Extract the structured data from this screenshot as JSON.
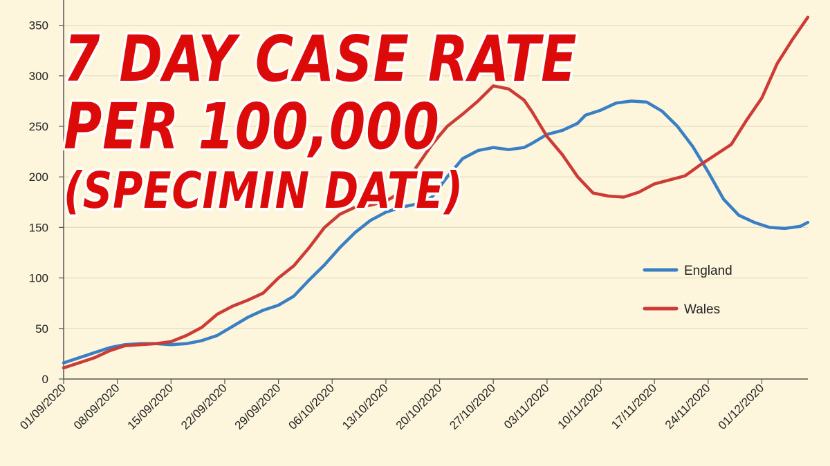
{
  "headline": {
    "line1": "7 DAY CASE RATE",
    "line2": "PER 100,000",
    "line3": "(SPECIMIN DATE)"
  },
  "colors": {
    "background": "#fdf6dc",
    "england": "#3a7fc4",
    "wales": "#cc3b35",
    "headline": "#dd0a0a",
    "grid": "#e4dcc0"
  },
  "chart_data": {
    "type": "line",
    "title": "7 DAY CASE RATE PER 100,000 (SPECIMIN DATE)",
    "xlabel": "",
    "ylabel": "",
    "ylim": [
      0,
      375
    ],
    "yticks": [
      0,
      50,
      100,
      150,
      200,
      250,
      300,
      350
    ],
    "xticks": [
      "01/09/2020",
      "08/09/2020",
      "15/09/2020",
      "22/09/2020",
      "29/09/2020",
      "06/10/2020",
      "13/10/2020",
      "20/10/2020",
      "27/10/2020",
      "03/11/2020",
      "10/11/2020",
      "17/11/2020",
      "24/11/2020",
      "01/12/2020"
    ],
    "x_start": "01/09/2020",
    "x_end": "07/12/2020",
    "grid": true,
    "legend_position": "right",
    "series": [
      {
        "name": "England",
        "color": "#3a7fc4",
        "x": [
          "01/09/2020",
          "03/09/2020",
          "05/09/2020",
          "07/09/2020",
          "09/09/2020",
          "11/09/2020",
          "13/09/2020",
          "15/09/2020",
          "17/09/2020",
          "19/09/2020",
          "21/09/2020",
          "23/09/2020",
          "25/09/2020",
          "27/09/2020",
          "29/09/2020",
          "01/10/2020",
          "03/10/2020",
          "05/10/2020",
          "07/10/2020",
          "09/10/2020",
          "11/10/2020",
          "13/10/2020",
          "15/10/2020",
          "17/10/2020",
          "19/10/2020",
          "21/10/2020",
          "23/10/2020",
          "25/10/2020",
          "27/10/2020",
          "29/10/2020",
          "31/10/2020",
          "01/11/2020",
          "03/11/2020",
          "05/11/2020",
          "07/11/2020",
          "08/11/2020",
          "10/11/2020",
          "12/11/2020",
          "14/11/2020",
          "16/11/2020",
          "18/11/2020",
          "20/11/2020",
          "22/11/2020",
          "24/11/2020",
          "26/11/2020",
          "28/11/2020",
          "30/11/2020",
          "02/12/2020",
          "04/12/2020",
          "06/12/2020",
          "07/12/2020"
        ],
        "values": [
          16,
          21,
          26,
          31,
          34,
          35,
          35,
          34,
          35,
          38,
          43,
          52,
          61,
          68,
          73,
          82,
          98,
          113,
          130,
          145,
          157,
          165,
          170,
          173,
          180,
          200,
          218,
          226,
          229,
          227,
          229,
          233,
          242,
          246,
          253,
          261,
          266,
          273,
          275,
          274,
          265,
          250,
          230,
          205,
          178,
          162,
          155,
          150,
          149,
          151,
          155
        ]
      },
      {
        "name": "Wales",
        "color": "#cc3b35",
        "x": [
          "01/09/2020",
          "03/09/2020",
          "05/09/2020",
          "07/09/2020",
          "09/09/2020",
          "11/09/2020",
          "13/09/2020",
          "15/09/2020",
          "17/09/2020",
          "19/09/2020",
          "21/09/2020",
          "23/09/2020",
          "25/09/2020",
          "27/09/2020",
          "29/09/2020",
          "01/10/2020",
          "03/10/2020",
          "05/10/2020",
          "07/10/2020",
          "09/10/2020",
          "11/10/2020",
          "13/10/2020",
          "15/10/2020",
          "17/10/2020",
          "19/10/2020",
          "21/10/2020",
          "23/10/2020",
          "25/10/2020",
          "27/10/2020",
          "29/10/2020",
          "31/10/2020",
          "01/11/2020",
          "03/11/2020",
          "05/11/2020",
          "07/11/2020",
          "09/11/2020",
          "11/11/2020",
          "13/11/2020",
          "15/11/2020",
          "17/11/2020",
          "19/11/2020",
          "21/11/2020",
          "23/11/2020",
          "25/11/2020",
          "27/11/2020",
          "29/11/2020",
          "01/12/2020",
          "03/12/2020",
          "05/12/2020",
          "07/12/2020"
        ],
        "values": [
          11,
          16,
          21,
          28,
          33,
          34,
          35,
          37,
          43,
          51,
          64,
          72,
          78,
          85,
          100,
          112,
          130,
          150,
          163,
          170,
          172,
          176,
          185,
          210,
          232,
          250,
          262,
          275,
          290,
          287,
          276,
          265,
          240,
          222,
          200,
          184,
          181,
          180,
          185,
          193,
          197,
          201,
          212,
          222,
          232,
          256,
          278,
          312,
          336,
          358
        ]
      }
    ]
  }
}
